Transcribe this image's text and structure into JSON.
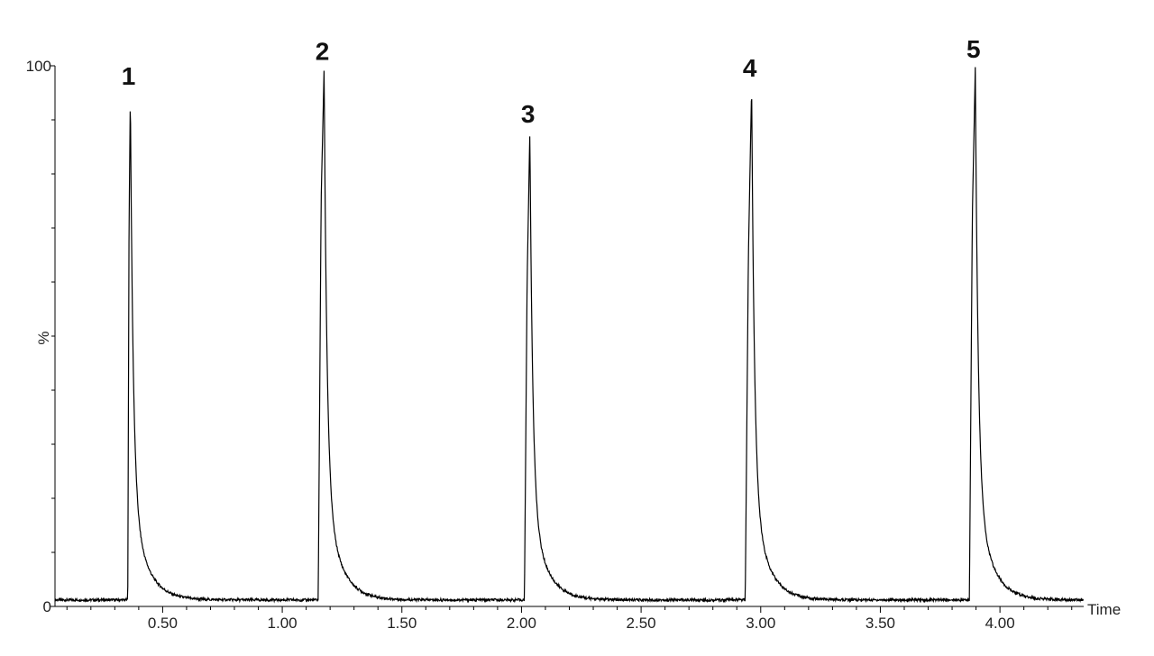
{
  "chart_data": {
    "type": "line",
    "title": "",
    "xlabel": "Time",
    "ylabel": "%",
    "xlim": [
      0.05,
      4.35
    ],
    "ylim": [
      0,
      100
    ],
    "x_ticks": [
      "0.50",
      "1.00",
      "1.50",
      "2.00",
      "2.50",
      "3.00",
      "3.50",
      "4.00"
    ],
    "y_tick_labels": [
      "0",
      "100"
    ],
    "y_minor_ticks": 10,
    "grid": false,
    "baseline": 1.2,
    "series": [
      {
        "color": "#000000",
        "peaks": [
          {
            "label": "1",
            "start": 0.354,
            "apex": 0.365,
            "height": 95.0,
            "shoulder": 70.0
          },
          {
            "label": "2",
            "start": 1.15,
            "apex": 1.175,
            "height": 99.6,
            "shoulder": 75.0
          },
          {
            "label": "3",
            "start": 2.012,
            "apex": 2.035,
            "height": 88.0,
            "shoulder": 60.0
          },
          {
            "label": "4",
            "start": 2.935,
            "apex": 2.962,
            "height": 96.5,
            "shoulder": 65.0
          },
          {
            "label": "5",
            "start": 3.872,
            "apex": 3.897,
            "height": 100.0,
            "shoulder": 72.0
          }
        ]
      }
    ]
  }
}
